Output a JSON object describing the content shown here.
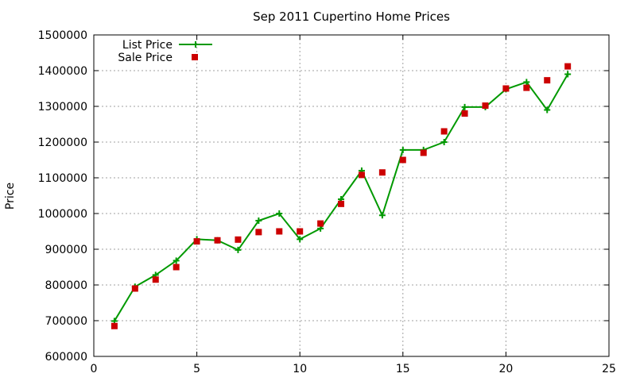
{
  "chart_data": {
    "type": "line",
    "title": "Sep 2011 Cupertino Home Prices",
    "xlabel": "",
    "ylabel": "Price",
    "xlim": [
      0,
      25
    ],
    "ylim": [
      600000,
      1500000
    ],
    "x_ticks": [
      "0",
      "5",
      "10",
      "15",
      "20",
      "25"
    ],
    "y_ticks": [
      "600000",
      "700000",
      "800000",
      "900000",
      "1000000",
      "1100000",
      "1200000",
      "1300000",
      "1400000",
      "1500000"
    ],
    "grid": true,
    "legend_position": "top-left",
    "series": [
      {
        "name": "List Price",
        "style": "line+cross",
        "color": "#009900",
        "x": [
          1,
          2,
          3,
          4,
          5,
          6,
          7,
          8,
          9,
          10,
          11,
          12,
          13,
          14,
          15,
          16,
          17,
          18,
          19,
          20,
          21,
          22,
          23
        ],
        "y": [
          699000,
          795000,
          828000,
          868000,
          928000,
          925000,
          898000,
          980000,
          1000000,
          928000,
          958000,
          1040000,
          1120000,
          995000,
          1178000,
          1178000,
          1200000,
          1298000,
          1298000,
          1348000,
          1368000,
          1290000,
          1390000
        ]
      },
      {
        "name": "Sale Price",
        "style": "square",
        "color": "#cc0000",
        "x": [
          1,
          2,
          3,
          4,
          5,
          6,
          7,
          8,
          9,
          10,
          11,
          12,
          13,
          14,
          15,
          16,
          17,
          18,
          19,
          20,
          21,
          22,
          23
        ],
        "y": [
          685000,
          790000,
          815000,
          850000,
          922000,
          925000,
          927000,
          948000,
          950000,
          950000,
          972000,
          1027000,
          1108000,
          1115000,
          1150000,
          1170000,
          1230000,
          1280000,
          1302000,
          1350000,
          1352000,
          1373000,
          1412000
        ]
      }
    ]
  }
}
